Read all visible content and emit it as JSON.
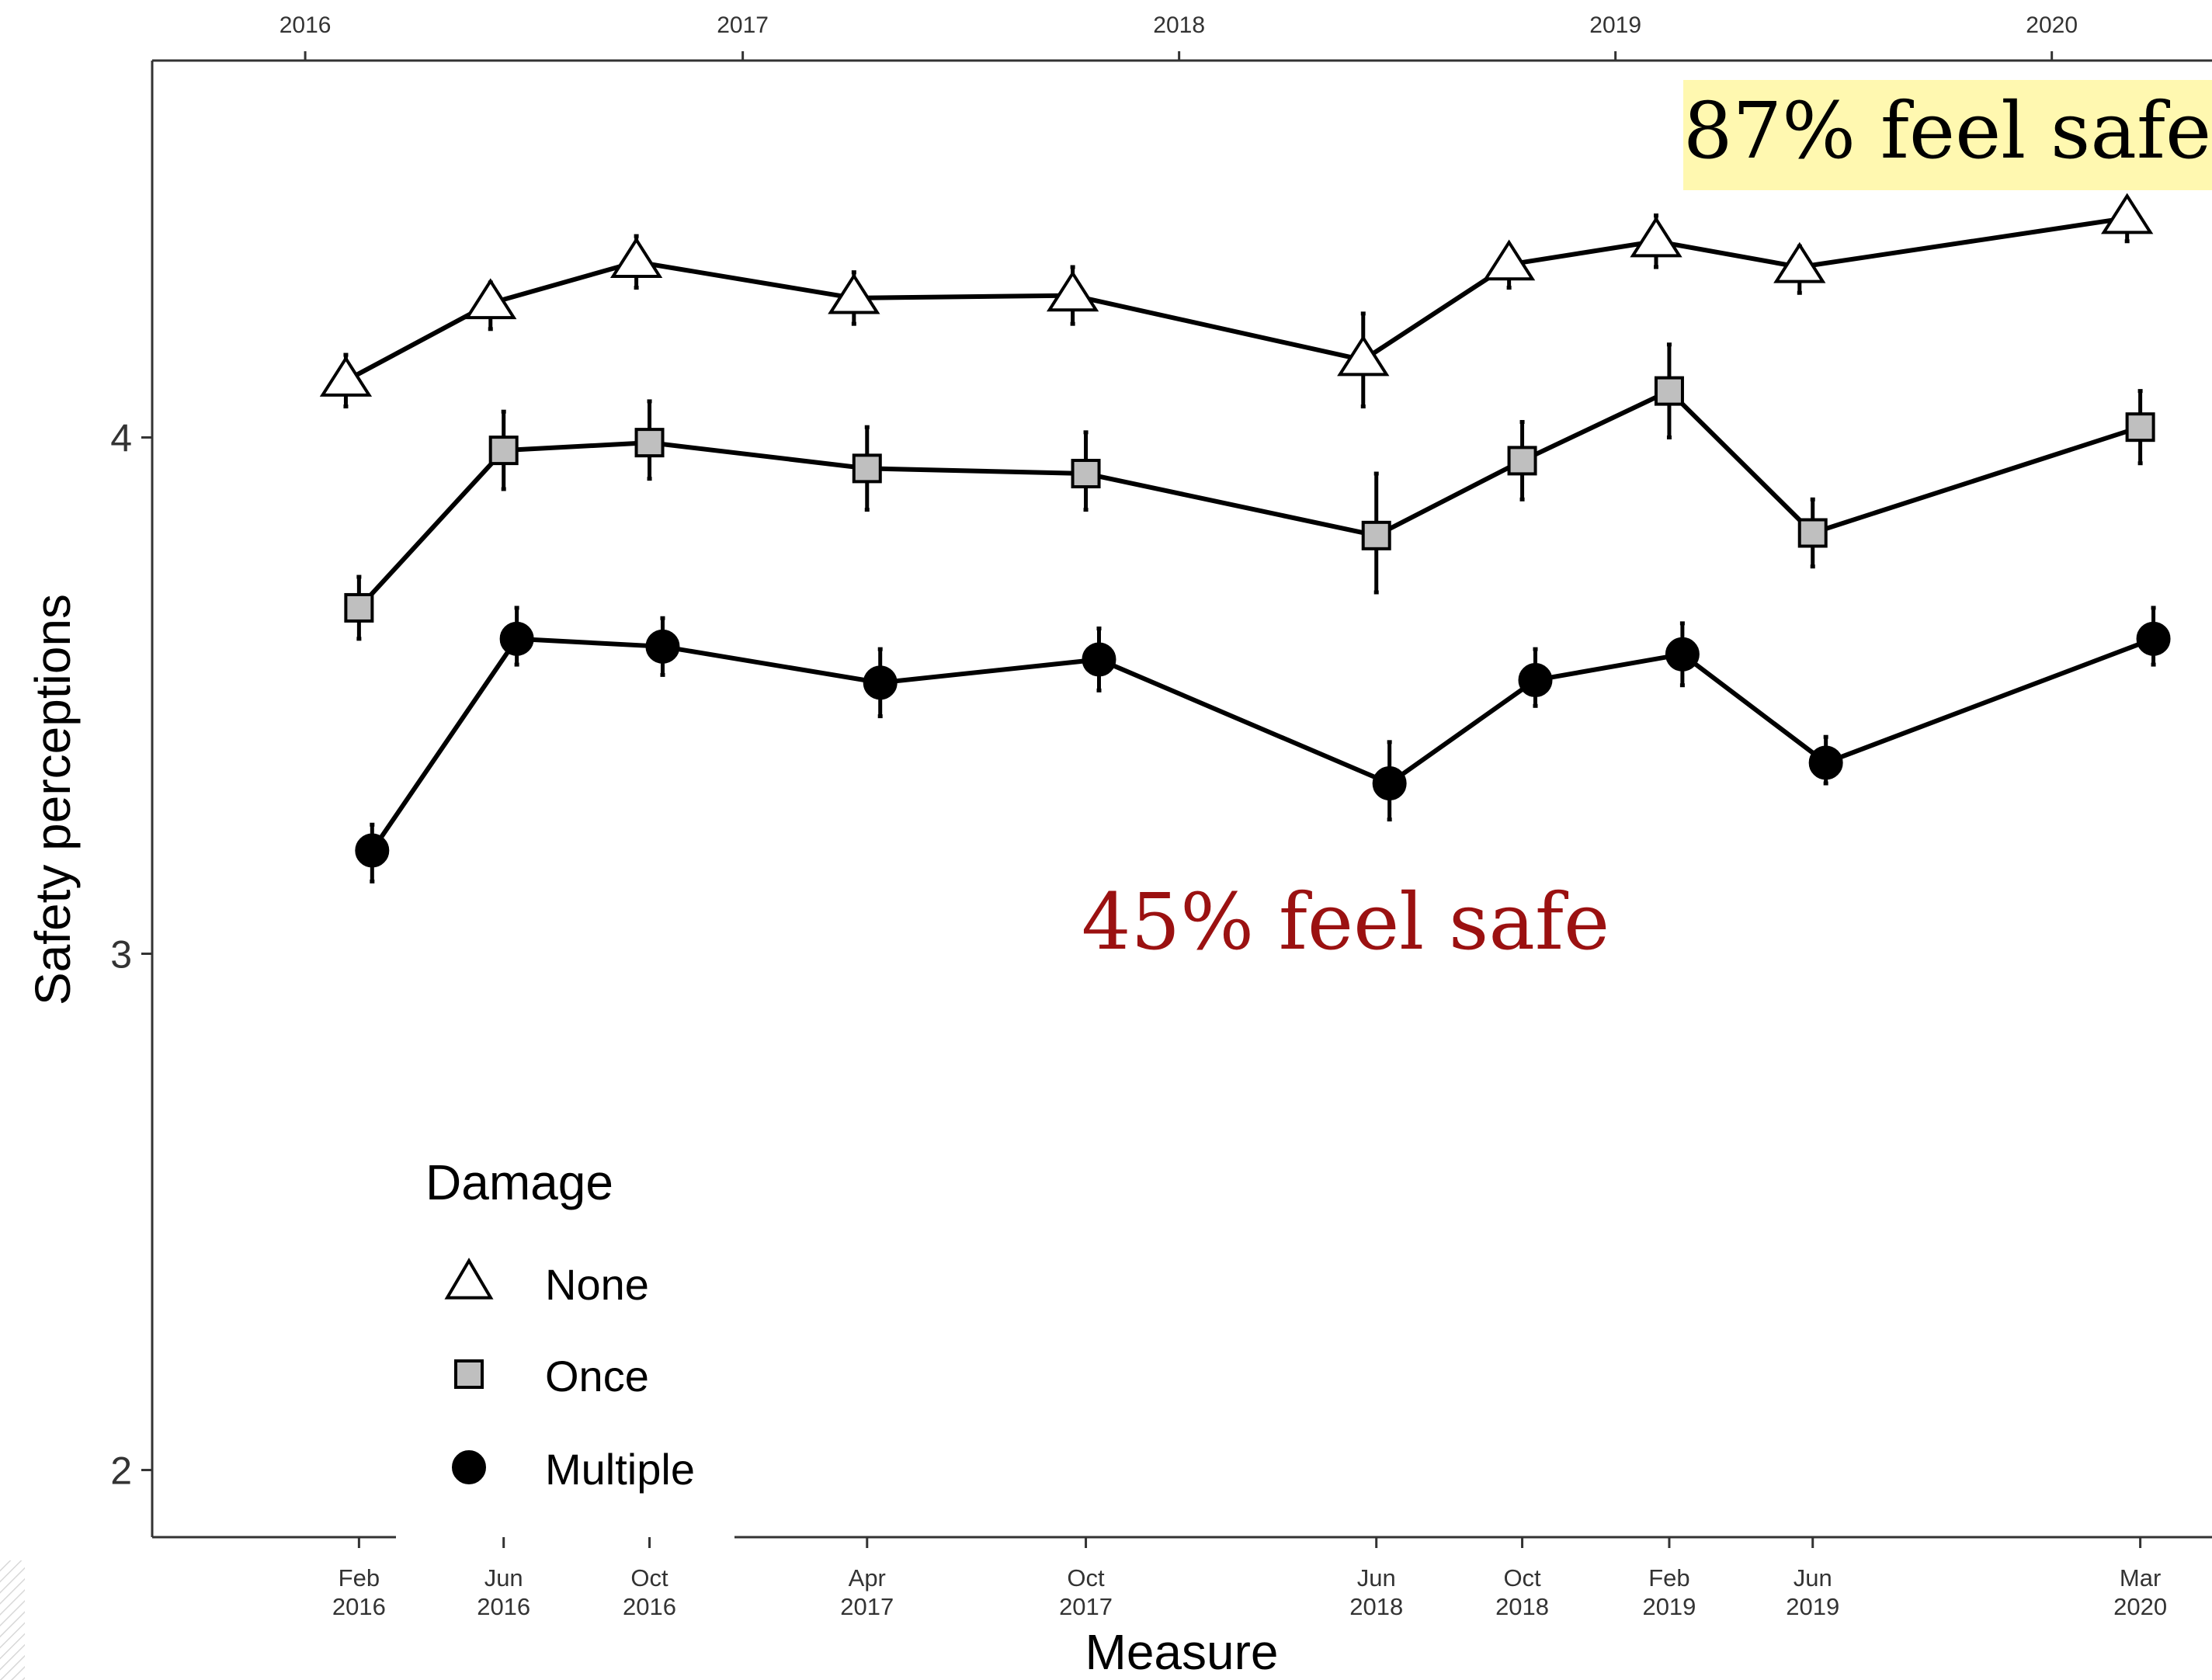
{
  "chart_data": {
    "type": "line",
    "xlabel": "Measure",
    "ylabel": "Safety perceptions",
    "ylim": [
      1.87,
      4.73
    ],
    "yticks": [
      2,
      3,
      4
    ],
    "xlim": [
      "2015-08-26",
      "2020-05-14"
    ],
    "x_ticks": [
      {
        "date": "2016-02-15",
        "line1": "Feb",
        "line2": "2016"
      },
      {
        "date": "2016-06-15",
        "line1": "Jun",
        "line2": "2016"
      },
      {
        "date": "2016-10-15",
        "line1": "Oct",
        "line2": "2016"
      },
      {
        "date": "2017-04-15",
        "line1": "Apr",
        "line2": "2017"
      },
      {
        "date": "2017-10-15",
        "line1": "Oct",
        "line2": "2017"
      },
      {
        "date": "2018-06-15",
        "line1": "Jun",
        "line2": "2018"
      },
      {
        "date": "2018-10-15",
        "line1": "Oct",
        "line2": "2018"
      },
      {
        "date": "2019-02-15",
        "line1": "Feb",
        "line2": "2019"
      },
      {
        "date": "2019-06-15",
        "line1": "Jun",
        "line2": "2019"
      },
      {
        "date": "2020-03-15",
        "line1": "Mar",
        "line2": "2020"
      }
    ],
    "top_axis_ticks": [
      {
        "date": "2016-01-01",
        "label": "2016"
      },
      {
        "date": "2017-01-01",
        "label": "2017"
      },
      {
        "date": "2018-01-01",
        "label": "2018"
      },
      {
        "date": "2019-01-01",
        "label": "2019"
      },
      {
        "date": "2020-01-01",
        "label": "2020"
      }
    ],
    "legend": {
      "title": "Damage",
      "position": "bottom-left"
    },
    "grid": false,
    "series": [
      {
        "name": "None",
        "marker": "triangle",
        "fill": "#ffffff",
        "dates": [
          "2016-02-04",
          "2016-06-04",
          "2016-10-04",
          "2017-04-04",
          "2017-10-04",
          "2018-06-04",
          "2018-10-04",
          "2019-02-04",
          "2019-06-04",
          "2020-03-04"
        ],
        "values": [
          4.11,
          4.26,
          4.34,
          4.27,
          4.275,
          4.15,
          4.335,
          4.38,
          4.33,
          4.425
        ],
        "ci_low": [
          4.06,
          4.21,
          4.29,
          4.22,
          4.22,
          4.06,
          4.29,
          4.33,
          4.28,
          4.38
        ],
        "ci_high": [
          4.16,
          4.3,
          4.39,
          4.32,
          4.33,
          4.24,
          4.37,
          4.43,
          4.37,
          4.46
        ]
      },
      {
        "name": "Once",
        "marker": "square",
        "fill": "#bfbfbf",
        "dates": [
          "2016-02-15",
          "2016-06-15",
          "2016-10-15",
          "2017-04-15",
          "2017-10-15",
          "2018-06-15",
          "2018-10-15",
          "2019-02-15",
          "2019-06-15",
          "2020-03-15"
        ],
        "values": [
          3.67,
          3.975,
          3.99,
          3.94,
          3.93,
          3.81,
          3.955,
          4.09,
          3.815,
          4.02
        ],
        "ci_low": [
          3.61,
          3.9,
          3.92,
          3.86,
          3.86,
          3.7,
          3.88,
          4.0,
          3.75,
          3.95
        ],
        "ci_high": [
          3.73,
          4.05,
          4.07,
          4.02,
          4.01,
          3.93,
          4.03,
          4.18,
          3.88,
          4.09
        ]
      },
      {
        "name": "Multiple",
        "marker": "circle",
        "fill": "#000000",
        "dates": [
          "2016-02-26",
          "2016-06-26",
          "2016-10-26",
          "2017-04-26",
          "2017-10-26",
          "2018-06-26",
          "2018-10-26",
          "2019-02-26",
          "2019-06-26",
          "2020-03-26"
        ],
        "values": [
          3.2,
          3.61,
          3.595,
          3.525,
          3.57,
          3.33,
          3.53,
          3.58,
          3.37,
          3.61
        ],
        "ci_low": [
          3.14,
          3.56,
          3.54,
          3.46,
          3.51,
          3.26,
          3.48,
          3.52,
          3.33,
          3.56
        ],
        "ci_high": [
          3.25,
          3.67,
          3.65,
          3.59,
          3.63,
          3.41,
          3.59,
          3.64,
          3.42,
          3.67
        ]
      }
    ],
    "annotations": [
      {
        "text": "87% feel safe",
        "color": "#000000",
        "background": "#fff8b0"
      },
      {
        "text": "45% feel safe",
        "color": "#9b1111",
        "background": ""
      }
    ]
  }
}
